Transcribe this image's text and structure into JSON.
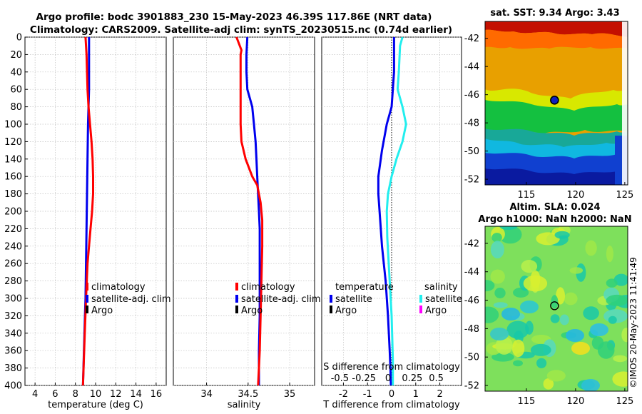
{
  "header": {
    "line1": "Argo profile: bodc 3901883_230 15-May-2023 46.39S 117.86E (NRT data)",
    "line2": "Climatology: CARS2009. Satellite-adj clim: synTS_20230515.nc (0.74d earlier)"
  },
  "colors": {
    "climatology": "#ff0000",
    "satellite": "#0000ee",
    "argo": "#000000",
    "sal_satellite": "#22eeee",
    "sal_argo": "#ff00ff",
    "grid": "#c0c0c0"
  },
  "chart_data": [
    {
      "id": "temperature",
      "type": "line",
      "xlabel": "temperature (deg C)",
      "ylabel": "",
      "xlim": [
        3,
        17
      ],
      "ylim": [
        0,
        400
      ],
      "y_reversed": true,
      "xticks": [
        4,
        6,
        8,
        10,
        12,
        14,
        16
      ],
      "xtick_labels": [
        "4",
        "6",
        "8",
        "10",
        "12",
        "14",
        "16"
      ],
      "yticks": [
        0,
        20,
        40,
        60,
        80,
        100,
        120,
        140,
        160,
        180,
        200,
        220,
        240,
        260,
        280,
        300,
        320,
        340,
        360,
        380,
        400
      ],
      "ytick_labels": [
        "0",
        "20",
        "40",
        "60",
        "80",
        "100",
        "120",
        "140",
        "160",
        "180",
        "200",
        "220",
        "240",
        "260",
        "280",
        "300",
        "320",
        "340",
        "360",
        "380",
        "400"
      ],
      "grid": true,
      "series": [
        {
          "name": "satellite-adj. clim",
          "color_key": "satellite",
          "x": [
            9.35,
            9.35,
            9.35,
            9.35,
            9.3,
            9.25,
            9.2,
            9.15,
            9.1,
            9.05,
            9.0,
            8.95,
            8.9,
            8.85,
            8.8,
            8.75
          ],
          "y": [
            0,
            20,
            40,
            60,
            80,
            100,
            140,
            180,
            220,
            260,
            300,
            320,
            340,
            360,
            380,
            400
          ]
        },
        {
          "name": "climatology",
          "color_key": "climatology",
          "x": [
            9.0,
            9.1,
            9.15,
            9.2,
            9.3,
            9.45,
            9.6,
            9.7,
            9.75,
            9.75,
            9.65,
            9.5,
            9.35,
            9.2,
            9.05,
            8.9,
            8.75
          ],
          "y": [
            0,
            20,
            40,
            60,
            80,
            100,
            120,
            140,
            160,
            180,
            200,
            220,
            240,
            260,
            300,
            350,
            400
          ]
        }
      ],
      "legend": {
        "position": "bottom-right",
        "entries": [
          {
            "label": "climatology",
            "color_key": "climatology"
          },
          {
            "label": "satellite-adj. clim",
            "color_key": "satellite"
          },
          {
            "label": "Argo",
            "color_key": "argo"
          }
        ]
      }
    },
    {
      "id": "salinity",
      "type": "line",
      "xlabel": "salinity",
      "ylabel": "",
      "xlim": [
        33.6,
        35.3
      ],
      "ylim": [
        0,
        400
      ],
      "y_reversed": true,
      "xticks": [
        34,
        34.5,
        35
      ],
      "xtick_labels": [
        "34",
        "34.5",
        "35"
      ],
      "yticks": [
        0,
        20,
        40,
        60,
        80,
        100,
        120,
        140,
        160,
        180,
        200,
        220,
        240,
        260,
        280,
        300,
        320,
        340,
        360,
        380,
        400
      ],
      "grid": true,
      "series": [
        {
          "name": "satellite-adj. clim",
          "color_key": "satellite",
          "x": [
            34.49,
            34.48,
            34.48,
            34.49,
            34.52,
            34.55,
            34.57,
            34.59,
            34.6,
            34.61,
            34.62,
            34.63,
            34.64,
            34.64,
            34.64,
            34.64,
            34.63,
            34.63
          ],
          "y": [
            0,
            20,
            40,
            60,
            70,
            80,
            100,
            120,
            140,
            160,
            180,
            200,
            220,
            240,
            280,
            320,
            360,
            400
          ]
        },
        {
          "name": "climatology",
          "color_key": "climatology",
          "x": [
            34.36,
            34.42,
            34.41,
            34.41,
            34.41,
            34.41,
            34.42,
            34.47,
            34.55,
            34.61,
            34.65,
            34.67,
            34.67,
            34.66,
            34.65,
            34.64,
            34.63,
            34.62
          ],
          "y": [
            0,
            15,
            20,
            40,
            80,
            100,
            120,
            140,
            160,
            170,
            190,
            210,
            240,
            280,
            320,
            360,
            380,
            400
          ]
        }
      ],
      "legend": {
        "position": "bottom-right",
        "entries": [
          {
            "label": "climatology",
            "color_key": "climatology"
          },
          {
            "label": "satellite-adj. clim",
            "color_key": "satellite"
          },
          {
            "label": "Argo",
            "color_key": "argo"
          }
        ]
      }
    },
    {
      "id": "difference",
      "type": "line",
      "xlabel": "T difference from climatology",
      "top_xlabel": "S difference from climatology",
      "xlim": [
        -2.9,
        2.9
      ],
      "ylim": [
        0,
        400
      ],
      "y_reversed": true,
      "xticks": [
        -2,
        -1,
        0,
        1,
        2
      ],
      "xtick_labels": [
        "-2",
        "-1",
        "0",
        "1",
        "2"
      ],
      "top_xtick_labels": [
        "-0.5",
        "-0.25",
        "0",
        "0.25",
        "0.5"
      ],
      "yticks": [
        0,
        20,
        40,
        60,
        80,
        100,
        120,
        140,
        160,
        180,
        200,
        220,
        240,
        260,
        280,
        300,
        320,
        340,
        360,
        380,
        400
      ],
      "grid": true,
      "zero_line": true,
      "series": [
        {
          "name": "temperature satellite",
          "color_key": "satellite",
          "x": [
            0.1,
            0.1,
            0.1,
            0.05,
            0.0,
            -0.2,
            -0.4,
            -0.55,
            -0.55,
            -0.5,
            -0.4,
            -0.25,
            -0.15,
            -0.08,
            -0.05,
            -0.03
          ],
          "y": [
            0,
            20,
            40,
            60,
            80,
            100,
            130,
            160,
            180,
            200,
            240,
            280,
            320,
            360,
            380,
            400
          ]
        },
        {
          "name": "salinity satellite",
          "color_key": "sal_satellite",
          "x": [
            0.45,
            0.35,
            0.3,
            0.25,
            0.45,
            0.6,
            0.45,
            0.2,
            0.0,
            -0.15,
            -0.2,
            -0.18,
            -0.1,
            0.0,
            0.05,
            0.05
          ],
          "y": [
            0,
            10,
            40,
            60,
            80,
            100,
            120,
            140,
            160,
            180,
            200,
            230,
            270,
            320,
            370,
            400
          ]
        }
      ],
      "legend_t": {
        "title": "temperature",
        "entries": [
          {
            "label": "satellite",
            "color_key": "satellite"
          },
          {
            "label": "Argo",
            "color_key": "argo"
          }
        ]
      },
      "legend_s": {
        "title": "salinity",
        "entries": [
          {
            "label": "satellite",
            "color_key": "sal_satellite"
          },
          {
            "label": "Argo",
            "color_key": "sal_argo"
          }
        ]
      }
    },
    {
      "id": "sst-map",
      "type": "heatmap",
      "title": "sat. SST: 9.34 Argo: 3.43",
      "xlim": [
        110.8,
        125.3
      ],
      "ylim": [
        -52.4,
        -40.8
      ],
      "xticks": [
        115,
        120,
        125
      ],
      "xtick_labels": [
        "115",
        "120",
        "125"
      ],
      "yticks": [
        -42,
        -44,
        -46,
        -48,
        -50,
        -52
      ],
      "ytick_labels": [
        "-42",
        "-44",
        "-46",
        "-48",
        "-50",
        "-52"
      ],
      "marker": {
        "lon": 117.86,
        "lat": -46.39,
        "style": "filled"
      },
      "front_boundaries": [
        {
          "name": "warm-front",
          "lat_at_lon": [
            [
              110.8,
              -45.0
            ],
            [
              113,
              -45.3
            ],
            [
              116,
              -45.2
            ],
            [
              118,
              -45.4
            ],
            [
              120,
              -45.6
            ],
            [
              123,
              -45.2
            ],
            [
              125.3,
              -45.3
            ]
          ]
        },
        {
          "name": "mid-front",
          "lat_at_lon": [
            [
              110.8,
              -48.0
            ],
            [
              113,
              -48.6
            ],
            [
              116,
              -48.3
            ],
            [
              118,
              -48.9
            ],
            [
              120,
              -49.0
            ],
            [
              123,
              -48.7
            ],
            [
              125.3,
              -48.8
            ]
          ]
        },
        {
          "name": "cold-front",
          "lat_at_lon": [
            [
              110.8,
              -49.8
            ],
            [
              113,
              -50.3
            ],
            [
              116,
              -50.0
            ],
            [
              118,
              -50.6
            ],
            [
              120,
              -50.4
            ],
            [
              123,
              -49.9
            ],
            [
              125.3,
              -50.2
            ]
          ]
        }
      ]
    },
    {
      "id": "sla-map",
      "type": "heatmap",
      "title1": "Altim. SLA: 0.024",
      "title2": "Argo h1000: NaN h2000: NaN",
      "xlim": [
        110.8,
        125.3
      ],
      "ylim": [
        -52.4,
        -40.8
      ],
      "xticks": [
        115,
        120,
        125
      ],
      "xtick_labels": [
        "115",
        "120",
        "125"
      ],
      "yticks": [
        -42,
        -44,
        -46,
        -48,
        -50,
        -52
      ],
      "ytick_labels": [
        "-42",
        "-44",
        "-46",
        "-48",
        "-50",
        "-52"
      ],
      "marker": {
        "lon": 117.86,
        "lat": -46.39,
        "style": "open"
      }
    }
  ],
  "footer": {
    "stamp": "©IMOS 20-May-2023 11:41:49"
  }
}
